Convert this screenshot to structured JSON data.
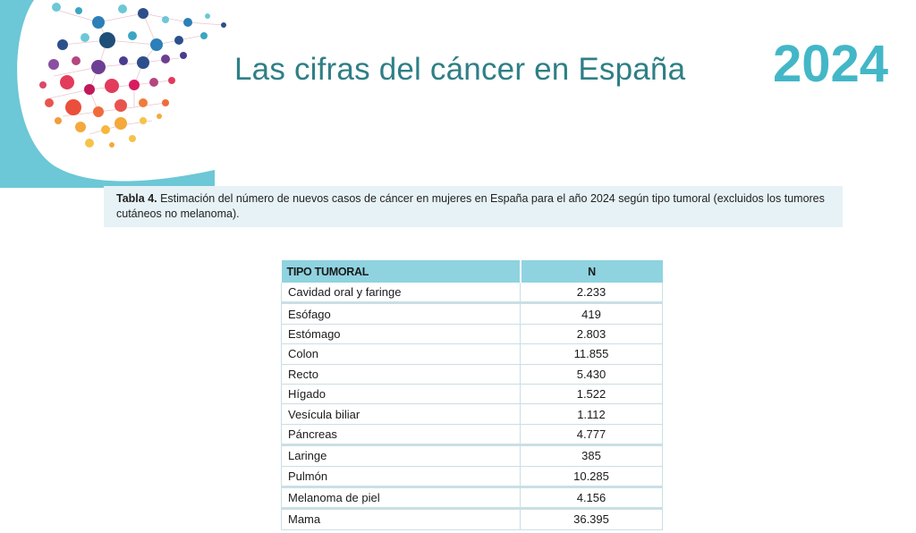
{
  "header": {
    "title": "Las cifras del cáncer en España",
    "year": "2024"
  },
  "caption": {
    "label": "Tabla 4.",
    "text": " Estimación del número de nuevos casos de cáncer en mujeres en España para el año 2024 según tipo tumoral (excluidos los tumores cutáneos no melanoma)."
  },
  "table": {
    "columns": [
      "TIPO TUMORAL",
      "N"
    ],
    "rows": [
      {
        "tipo": "Cavidad oral y faringe",
        "n": "2.233"
      },
      {
        "tipo": "Esófago",
        "n": "419"
      },
      {
        "tipo": "Estómago",
        "n": "2.803"
      },
      {
        "tipo": "Colon",
        "n": "11.855"
      },
      {
        "tipo": "Recto",
        "n": "5.430"
      },
      {
        "tipo": "Hígado",
        "n": "1.522"
      },
      {
        "tipo": "Vesícula biliar",
        "n": "1.112"
      },
      {
        "tipo": "Páncreas",
        "n": "4.777"
      },
      {
        "tipo": "Laringe",
        "n": "385"
      },
      {
        "tipo": "Pulmón",
        "n": "10.285"
      },
      {
        "tipo": "Melanoma de piel",
        "n": "4.156"
      },
      {
        "tipo": "Mama",
        "n": "36.395"
      }
    ]
  },
  "colors": {
    "title": "#2f7f86",
    "year": "#43b7c7",
    "table_header": "#8fd3e0",
    "caption_bg": "#e7f2f6"
  }
}
